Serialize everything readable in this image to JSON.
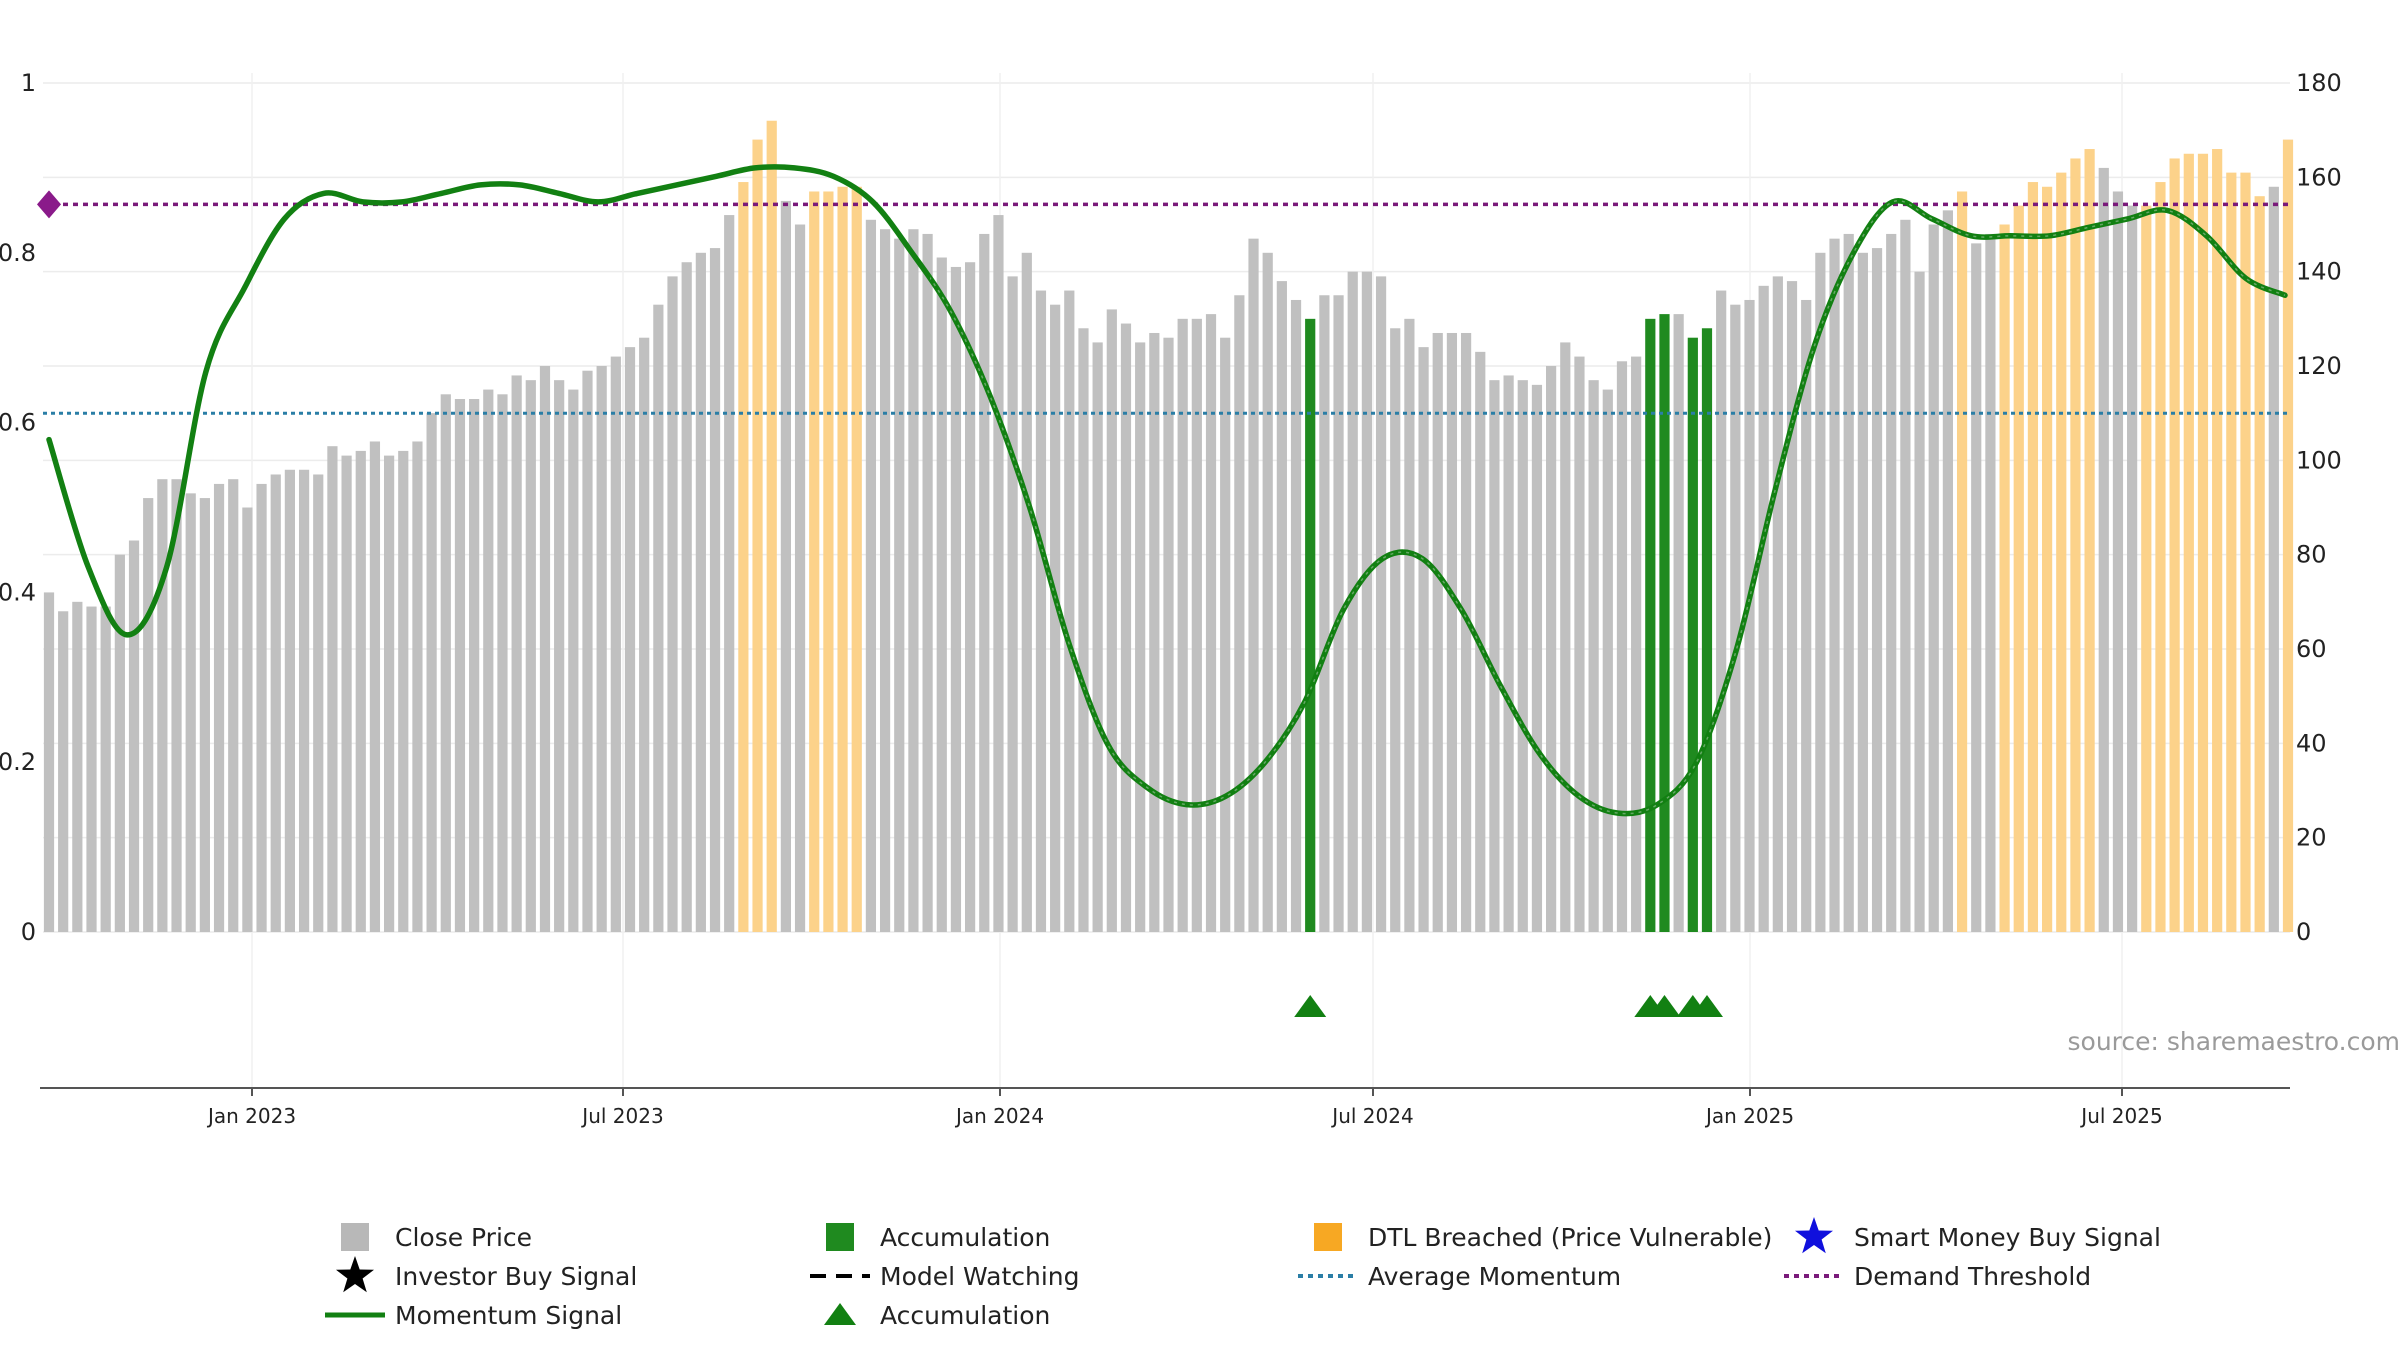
{
  "chart_data": {
    "type": "bar",
    "source_note": "source: sharemaestro.com",
    "x_ticks": [
      "Jan 2023",
      "Jul 2023",
      "Jan 2024",
      "Jul 2024",
      "Jan 2025",
      "Jul 2025"
    ],
    "y_left": {
      "ylim": [
        0,
        1
      ],
      "ticks": [
        "0",
        "0.2",
        "0.4",
        "0.6",
        "0.8",
        "1"
      ]
    },
    "y_right": {
      "ylim": [
        0,
        180
      ],
      "ticks": [
        "0",
        "20",
        "40",
        "60",
        "80",
        "100",
        "120",
        "140",
        "160",
        "180"
      ]
    },
    "grid": true,
    "legend_position": "bottom",
    "colors": {
      "close": "#c0c0c0",
      "dtl": "#fcd28a",
      "accumulation": "#1f8a1f",
      "momentum": "#128012",
      "avg_momentum": "#2a7ea6",
      "demand_threshold": "#7a1a7a",
      "smart_money": "#1010dd"
    },
    "close_price": [
      72,
      68,
      70,
      69,
      69,
      80,
      83,
      92,
      96,
      96,
      93,
      92,
      95,
      96,
      90,
      95,
      97,
      98,
      98,
      97,
      103,
      101,
      102,
      104,
      101,
      102,
      104,
      110,
      114,
      113,
      113,
      115,
      114,
      118,
      117,
      120,
      117,
      115,
      119,
      120,
      122,
      124,
      126,
      133,
      139,
      142,
      144,
      145,
      152,
      159,
      168,
      172,
      155,
      150,
      157,
      157,
      158,
      158,
      151,
      149,
      147,
      149,
      148,
      143,
      141,
      142,
      148,
      152,
      139,
      144,
      136,
      133,
      136,
      128,
      125,
      132,
      129,
      125,
      127,
      126,
      130,
      130,
      131,
      126,
      135,
      147,
      144,
      138,
      134,
      130,
      135,
      135,
      140,
      140,
      139,
      128,
      130,
      124,
      127,
      127,
      127,
      123,
      117,
      118,
      117,
      116,
      120,
      125,
      122,
      117,
      115,
      121,
      122,
      130,
      131,
      131,
      126,
      128,
      136,
      133,
      134,
      137,
      139,
      138,
      134,
      144,
      147,
      148,
      144,
      145,
      148,
      151,
      140,
      150,
      153,
      157,
      146,
      148,
      150,
      154,
      159,
      158,
      161,
      164,
      166,
      162,
      157,
      154,
      154,
      159,
      164,
      165,
      165,
      166,
      161,
      161,
      156,
      158,
      168
    ],
    "dtl_breached_bars": [
      49,
      50,
      51,
      54,
      55,
      56,
      57,
      135,
      138,
      139,
      140,
      141,
      142,
      143,
      144,
      148,
      149,
      150,
      151,
      152,
      153,
      154,
      155,
      156,
      158
    ],
    "accumulation_bars": [
      89,
      113,
      114,
      116,
      117
    ],
    "accumulation_triangles": [
      89,
      113,
      114,
      116,
      117
    ],
    "momentum_signal": [
      0.58,
      0.43,
      0.35,
      0.43,
      0.66,
      0.76,
      0.84,
      0.87,
      0.86,
      0.86,
      0.87,
      0.88,
      0.88,
      0.87,
      0.86,
      0.87,
      0.88,
      0.89,
      0.9,
      0.9,
      0.89,
      0.86,
      0.8,
      0.73,
      0.63,
      0.5,
      0.34,
      0.22,
      0.17,
      0.15,
      0.16,
      0.2,
      0.27,
      0.38,
      0.44,
      0.44,
      0.38,
      0.29,
      0.21,
      0.16,
      0.14,
      0.15,
      0.2,
      0.33,
      0.52,
      0.69,
      0.8,
      0.86,
      0.84,
      0.82,
      0.82,
      0.82,
      0.83,
      0.84,
      0.85,
      0.82,
      0.77,
      0.75
    ],
    "average_momentum": 0.611,
    "demand_threshold": 0.857,
    "legend": [
      {
        "label": "Close Price",
        "symbol": "square",
        "color": "#b8b8b8"
      },
      {
        "label": "Accumulation",
        "symbol": "square",
        "color": "#1f8a1f"
      },
      {
        "label": "DTL Breached (Price Vulnerable)",
        "symbol": "square",
        "color": "#f7a823"
      },
      {
        "label": "Smart Money Buy Signal",
        "symbol": "star",
        "color": "#1010dd"
      },
      {
        "label": "Investor Buy Signal",
        "symbol": "star",
        "color": "#000000"
      },
      {
        "label": "Model Watching",
        "symbol": "dash",
        "color": "#000000"
      },
      {
        "label": "Average Momentum",
        "symbol": "dot",
        "color": "#2a7ea6"
      },
      {
        "label": "Demand Threshold",
        "symbol": "dot",
        "color": "#7a1a7a"
      },
      {
        "label": "Momentum Signal",
        "symbol": "line",
        "color": "#128012"
      },
      {
        "label": "Accumulation",
        "symbol": "triangle",
        "color": "#128012"
      }
    ]
  }
}
